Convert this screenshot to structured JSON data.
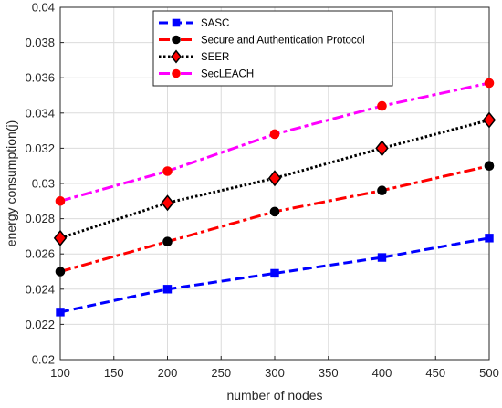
{
  "chart_data": {
    "type": "line",
    "title": "",
    "xlabel": "number of nodes",
    "ylabel": "energy consumption(j)",
    "xlim": [
      100,
      500
    ],
    "ylim": [
      0.02,
      0.04
    ],
    "x_ticks": [
      "100",
      "150",
      "200",
      "250",
      "300",
      "350",
      "400",
      "450",
      "500"
    ],
    "y_ticks": [
      "0.02",
      "0.022",
      "0.024",
      "0.026",
      "0.028",
      "0.03",
      "0.032",
      "0.034",
      "0.036",
      "0.038",
      "0.04"
    ],
    "grid": true,
    "legend_position": "top-center",
    "x": [
      100,
      200,
      300,
      400,
      500
    ],
    "series": [
      {
        "name": "SASC",
        "values": [
          0.0227,
          0.024,
          0.0249,
          0.0258,
          0.0269
        ],
        "color": "#0000ff",
        "dash": "dashed",
        "marker": "square"
      },
      {
        "name": "Secure and Authentication Protocol",
        "values": [
          0.025,
          0.0267,
          0.0284,
          0.0296,
          0.031
        ],
        "color": "#ff0000",
        "marker_color": "#000000",
        "dash": "dashdot",
        "marker": "circle"
      },
      {
        "name": "SEER",
        "values": [
          0.0269,
          0.0289,
          0.0303,
          0.032,
          0.0336
        ],
        "color": "#000000",
        "marker_color": "#ff0000",
        "dash": "dotted",
        "marker": "diamond"
      },
      {
        "name": "SecLEACH",
        "values": [
          0.029,
          0.0307,
          0.0328,
          0.0344,
          0.0357
        ],
        "color": "#ff00ff",
        "marker_color": "#ff0000",
        "dash": "dashdot",
        "marker": "circle"
      }
    ]
  }
}
